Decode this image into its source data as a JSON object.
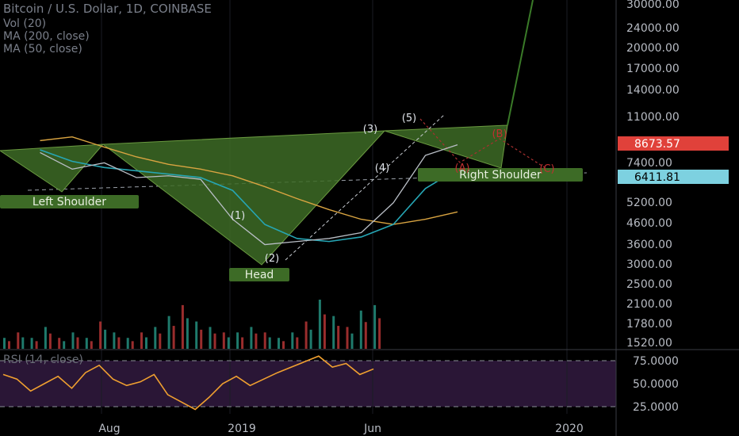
{
  "header": {
    "title": "Bitcoin / U.S. Dollar, 1D, COINBASE",
    "vol": "Vol (20)",
    "ma200": "MA (200, close)",
    "ma50": "MA (50, close)",
    "rsi": "RSI (14, close)"
  },
  "colors": {
    "background": "#000000",
    "pattern_fill": "#3d6b26",
    "price_line": "#b9bec6",
    "ma50": "#26a6b5",
    "ma200": "#d9a441",
    "rsi_line": "#f0a030",
    "rsi_band": "#2a1636",
    "vol_up": "#1f7a6c",
    "vol_down": "#9a2d2d",
    "current_price_tag": "#e0413a",
    "level_tag": "#7dd1e0",
    "label_tag": "#3d6b26",
    "projection": "#3a7a28"
  },
  "chart_data": [
    {
      "type": "line",
      "title": "Bitcoin / U.S. Dollar, 1D, COINBASE",
      "scale": "log",
      "y_ticks": [
        30000,
        24000,
        20000,
        17000,
        14000,
        11000,
        7400,
        5200,
        4600,
        3600,
        3000,
        2500,
        2100,
        1780,
        1520
      ],
      "y_tick_labels": [
        "30000.00",
        "24000.00",
        "20000.00",
        "17000.00",
        "14000.00",
        "11000.00",
        "7400.00",
        "5200.00",
        "4600.00",
        "3600.00",
        "3000.00",
        "2500.00",
        "2100.00",
        "1780.00",
        "1520.00"
      ],
      "x_ticks": [
        "Aug",
        "2019",
        "Jun",
        "2020"
      ],
      "x_tick_dates": [
        "2018-08",
        "2019-01",
        "2019-06",
        "2020-01"
      ],
      "current_price": "8673.57",
      "marked_level": "6411.81",
      "series": [
        {
          "name": "price",
          "x": [
            "2018-05",
            "2018-06",
            "2018-07",
            "2018-08",
            "2018-09",
            "2018-10",
            "2018-11",
            "2018-12",
            "2019-01",
            "2019-02",
            "2019-03",
            "2019-04",
            "2019-05",
            "2019-06"
          ],
          "values": [
            8100,
            7000,
            7400,
            6500,
            6600,
            6400,
            4500,
            3600,
            3700,
            3800,
            4000,
            5200,
            7900,
            8673
          ]
        },
        {
          "name": "MA (50, close)",
          "x": [
            "2018-05",
            "2018-06",
            "2018-07",
            "2018-08",
            "2018-09",
            "2018-10",
            "2018-11",
            "2018-12",
            "2019-01",
            "2019-02",
            "2019-03",
            "2019-04",
            "2019-05",
            "2019-06"
          ],
          "values": [
            8300,
            7500,
            7100,
            6900,
            6700,
            6500,
            5800,
            4300,
            3800,
            3700,
            3850,
            4300,
            5900,
            7000
          ]
        },
        {
          "name": "MA (200, close)",
          "x": [
            "2018-05",
            "2018-06",
            "2018-07",
            "2018-08",
            "2018-09",
            "2018-10",
            "2018-11",
            "2018-12",
            "2019-01",
            "2019-02",
            "2019-03",
            "2019-04",
            "2019-05",
            "2019-06"
          ],
          "values": [
            9000,
            9300,
            8500,
            7800,
            7300,
            7000,
            6600,
            6000,
            5400,
            4900,
            4500,
            4300,
            4500,
            4800
          ]
        }
      ],
      "pattern_labels": [
        "Left Shoulder",
        "Head",
        "Right Shoulder"
      ],
      "wave_labels": [
        "(1)",
        "(2)",
        "(3)",
        "(4)",
        "(5)",
        "(A)",
        "(B)",
        "(C)"
      ]
    },
    {
      "type": "bar",
      "name": "Vol (20)",
      "note_levels": "volume bars share the price axis region",
      "values": [
        2,
        3,
        2,
        4,
        2,
        3,
        2,
        5,
        3,
        2,
        3,
        4,
        6,
        8,
        5,
        4,
        3,
        3,
        4,
        3,
        2,
        3,
        5,
        9,
        6,
        4,
        7,
        8
      ]
    },
    {
      "type": "line",
      "name": "RSI (14, close)",
      "y_ticks": [
        75,
        50,
        25
      ],
      "y_tick_labels": [
        "75.0000",
        "50.0000",
        "25.0000"
      ],
      "bands": [
        70,
        30
      ],
      "values": [
        60,
        55,
        42,
        50,
        58,
        45,
        62,
        70,
        55,
        48,
        52,
        60,
        38,
        30,
        22,
        35,
        50,
        58,
        48,
        55,
        62,
        68,
        74,
        80,
        68,
        72,
        60,
        66
      ]
    }
  ]
}
